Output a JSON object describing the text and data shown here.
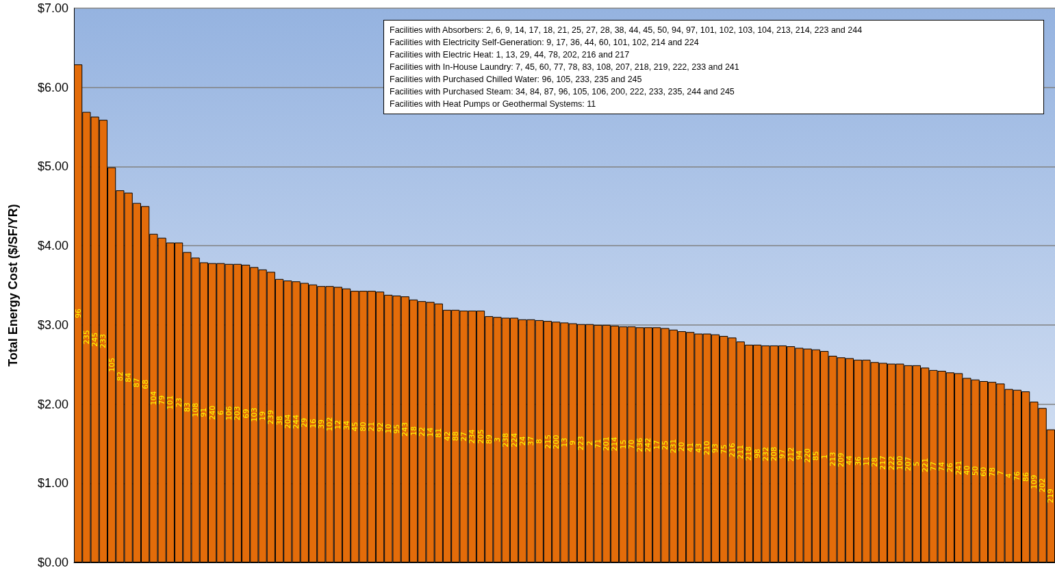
{
  "chart_data": {
    "type": "bar",
    "ylabel": "Total Energy Cost ($/SF/YR)",
    "categories": [
      "96",
      "235",
      "245",
      "233",
      "105",
      "82",
      "84",
      "87",
      "68",
      "104",
      "79",
      "101",
      "23",
      "83",
      "108",
      "91",
      "240",
      "6",
      "106",
      "203",
      "69",
      "103",
      "19",
      "239",
      "38",
      "204",
      "244",
      "29",
      "16",
      "39",
      "102",
      "12",
      "34",
      "45",
      "80",
      "21",
      "92",
      "10",
      "95",
      "243",
      "18",
      "22",
      "14",
      "81",
      "42",
      "88",
      "27",
      "234",
      "205",
      "89",
      "3",
      "238",
      "224",
      "24",
      "37",
      "8",
      "215",
      "200",
      "13",
      "9",
      "223",
      "2",
      "71",
      "201",
      "214",
      "15",
      "70",
      "236",
      "242",
      "17",
      "25",
      "231",
      "20",
      "41",
      "43",
      "210",
      "93",
      "75",
      "216",
      "211",
      "218",
      "98",
      "232",
      "208",
      "97",
      "212",
      "94",
      "220",
      "85",
      "1",
      "213",
      "209",
      "44",
      "36",
      "11",
      "28",
      "217",
      "222",
      "100",
      "207",
      "5",
      "221",
      "77",
      "74",
      "26",
      "241",
      "40",
      "50",
      "60",
      "78",
      "7",
      "4",
      "76",
      "86",
      "109",
      "202",
      "219"
    ],
    "values": [
      6.29,
      5.69,
      5.63,
      5.59,
      4.99,
      4.7,
      4.67,
      4.54,
      4.5,
      4.15,
      4.1,
      4.04,
      4.04,
      3.92,
      3.85,
      3.79,
      3.78,
      3.78,
      3.77,
      3.77,
      3.76,
      3.73,
      3.7,
      3.67,
      3.58,
      3.56,
      3.55,
      3.53,
      3.51,
      3.49,
      3.49,
      3.48,
      3.46,
      3.43,
      3.43,
      3.43,
      3.42,
      3.38,
      3.37,
      3.36,
      3.32,
      3.3,
      3.29,
      3.27,
      3.19,
      3.19,
      3.18,
      3.18,
      3.18,
      3.11,
      3.1,
      3.09,
      3.09,
      3.07,
      3.07,
      3.06,
      3.05,
      3.04,
      3.03,
      3.02,
      3.01,
      3.01,
      3.0,
      3.0,
      2.99,
      2.98,
      2.98,
      2.97,
      2.97,
      2.97,
      2.96,
      2.94,
      2.92,
      2.91,
      2.89,
      2.89,
      2.88,
      2.86,
      2.84,
      2.79,
      2.75,
      2.75,
      2.74,
      2.74,
      2.74,
      2.73,
      2.71,
      2.7,
      2.69,
      2.67,
      2.61,
      2.59,
      2.58,
      2.56,
      2.56,
      2.53,
      2.52,
      2.51,
      2.51,
      2.49,
      2.49,
      2.46,
      2.43,
      2.42,
      2.4,
      2.39,
      2.33,
      2.31,
      2.29,
      2.28,
      2.26,
      2.19,
      2.18,
      2.16,
      2.03,
      1.95,
      1.68
    ],
    "color": "#e36c0a",
    "ylim": [
      0,
      7
    ],
    "yticks": [
      {
        "value": 0,
        "label": "$0.00"
      },
      {
        "value": 1,
        "label": "$1.00"
      },
      {
        "value": 2,
        "label": "$2.00"
      },
      {
        "value": 3,
        "label": "$3.00"
      },
      {
        "value": 4,
        "label": "$4.00"
      },
      {
        "value": 5,
        "label": "$5.00"
      },
      {
        "value": 6,
        "label": "$6.00"
      },
      {
        "value": 7,
        "label": "$7.00"
      }
    ],
    "grid": "y",
    "tick_labels": "y",
    "annotations": [
      "Facilities with Absorbers:  2, 6, 9, 14, 17, 18, 21, 25, 27, 28, 38, 44, 45, 50, 94, 97, 101, 102, 103, 104, 213, 214, 223 and 244",
      "Facilities with Electricity Self-Generation:  9, 17, 36, 44, 60, 101, 102, 214 and 224",
      "Facilities with Electric Heat:  1, 13, 29, 44, 78, 202, 216 and 217",
      "Facilities with In-House Laundry:  7, 45, 60, 77, 78, 83, 108, 207, 218, 219, 222, 233 and 241",
      "Facilities with Purchased Chilled Water:  96, 105, 233, 235 and 245",
      "Facilities with Purchased Steam:  34, 84, 87, 96, 105, 106, 200, 222, 233, 235, 244 and 245",
      "Facilities with Heat Pumps or Geothermal Systems:  11"
    ]
  }
}
